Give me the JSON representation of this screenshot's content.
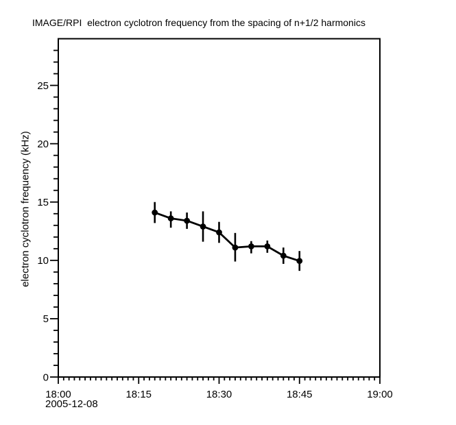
{
  "page": {
    "background": "#ffffff",
    "foreground": "#000000"
  },
  "chart_data": {
    "type": "line",
    "title": "IMAGE/RPI  electron cyclotron frequency from the spacing of n+1/2 harmonics",
    "ylabel": "electron cyclotron frequency (kHz)",
    "date_label": "2005-12-08",
    "grid": false,
    "legend": false,
    "axis_color": "#000000",
    "xlim_minutes": [
      0,
      60
    ],
    "ylim": [
      0,
      29
    ],
    "x_major_ticks": [
      {
        "minute": 0,
        "label": "18:00"
      },
      {
        "minute": 15,
        "label": "18:15"
      },
      {
        "minute": 30,
        "label": "18:30"
      },
      {
        "minute": 45,
        "label": "18:45"
      },
      {
        "minute": 60,
        "label": "19:00"
      }
    ],
    "x_minor_interval_minutes": 1,
    "y_major_ticks": [
      {
        "value": 0,
        "label": "0"
      },
      {
        "value": 5,
        "label": "5"
      },
      {
        "value": 10,
        "label": "10"
      },
      {
        "value": 15,
        "label": "15"
      },
      {
        "value": 20,
        "label": "20"
      },
      {
        "value": 25,
        "label": "25"
      }
    ],
    "y_minor_interval": 1,
    "series": [
      {
        "name": "electron cyclotron frequency",
        "color": "#000000",
        "marker": "circle",
        "points": [
          {
            "time": "18:18",
            "minute": 18,
            "value": 14.1,
            "err_lo": 13.2,
            "err_hi": 15.0
          },
          {
            "time": "18:21",
            "minute": 21,
            "value": 13.6,
            "err_lo": 12.8,
            "err_hi": 14.2
          },
          {
            "time": "18:24",
            "minute": 24,
            "value": 13.4,
            "err_lo": 12.7,
            "err_hi": 14.1
          },
          {
            "time": "18:27",
            "minute": 27,
            "value": 12.9,
            "err_lo": 11.6,
            "err_hi": 14.2
          },
          {
            "time": "18:30",
            "minute": 30,
            "value": 12.4,
            "err_lo": 11.5,
            "err_hi": 13.3
          },
          {
            "time": "18:33",
            "minute": 33,
            "value": 11.1,
            "err_lo": 9.9,
            "err_hi": 12.35
          },
          {
            "time": "18:36",
            "minute": 36,
            "value": 11.2,
            "err_lo": 10.6,
            "err_hi": 11.65
          },
          {
            "time": "18:39",
            "minute": 39,
            "value": 11.2,
            "err_lo": 10.65,
            "err_hi": 11.7
          },
          {
            "time": "18:42",
            "minute": 42,
            "value": 10.4,
            "err_lo": 9.7,
            "err_hi": 11.1
          },
          {
            "time": "18:45",
            "minute": 45,
            "value": 9.95,
            "err_lo": 9.1,
            "err_hi": 10.8
          }
        ]
      }
    ]
  }
}
